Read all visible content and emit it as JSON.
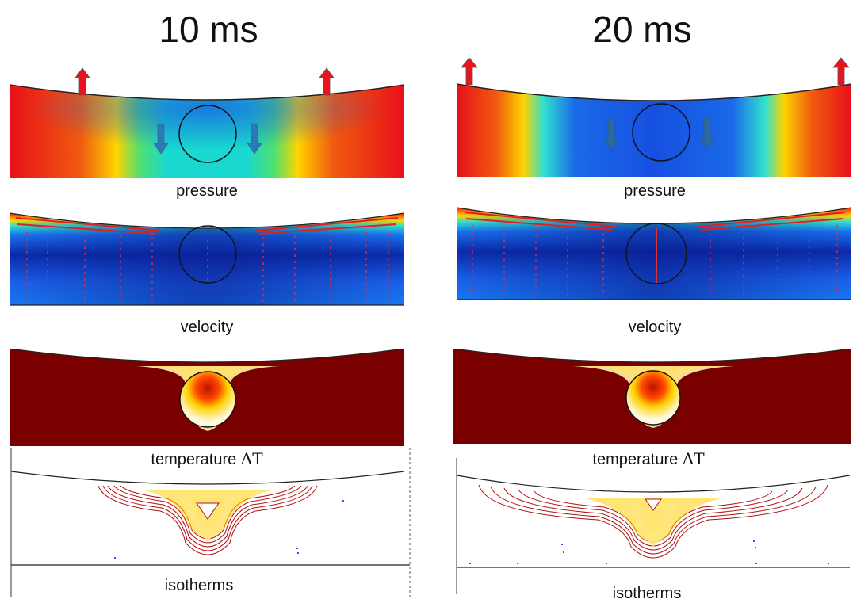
{
  "columns": [
    {
      "title": "10 ms",
      "captions": {
        "pressure": "pressure",
        "velocity": "velocity",
        "temperature": "temperature",
        "delta": "ΔT",
        "isotherms": "isotherms"
      }
    },
    {
      "title": "20 ms",
      "captions": {
        "pressure": "pressure",
        "velocity": "velocity",
        "temperature": "temperature",
        "delta": "ΔT",
        "isotherms": "isotherms"
      }
    }
  ],
  "colors": {
    "hot": "#e3121b",
    "warm": "#ffb000",
    "mid": "#1ee0c8",
    "cool": "#1555e8",
    "cold": "#0a1c8c",
    "temp_dark": "#7a0000",
    "temp_bright": "#fff8d0",
    "arrow_up": "#e8141c",
    "arrow_down": "#2a7ab8",
    "vector": "#e03030",
    "isotherm": "#b01010"
  }
}
